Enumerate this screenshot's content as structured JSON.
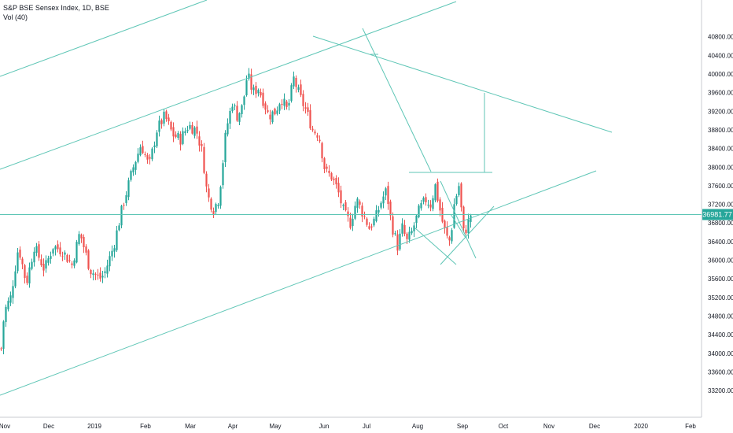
{
  "header": {
    "title": "S&P BSE Sensex Index, 1D, BSE",
    "volume_label": "Vol (40)"
  },
  "colors": {
    "up": "#26a69a",
    "down": "#ef5350",
    "trendline": "#5fc6b6",
    "last_price_bg": "#26a69a",
    "axis_text": "#131722",
    "border": "#c8cbd1"
  },
  "chart_data": {
    "type": "candlestick",
    "symbol": "S&P BSE Sensex Index",
    "interval": "1D",
    "exchange": "BSE",
    "ylim": [
      33000,
      41200
    ],
    "y_ticks": [
      33200,
      33600,
      34000,
      34400,
      34800,
      35200,
      35600,
      36000,
      36400,
      36800,
      37200,
      37600,
      38000,
      38400,
      38800,
      39200,
      39600,
      40000,
      40400,
      40800
    ],
    "x_ticks": [
      "Nov",
      "Dec",
      "2019",
      "Feb",
      "Mar",
      "Apr",
      "May",
      "Jun",
      "Jul",
      "Aug",
      "Sep",
      "Oct",
      "Nov",
      "Dec",
      "2020",
      "Feb"
    ],
    "last_price": "36981.77",
    "last_price_value": 36981.77,
    "anchors": [
      [
        0,
        34100
      ],
      [
        4,
        34900
      ],
      [
        12,
        35200
      ],
      [
        22,
        36300
      ],
      [
        32,
        35500
      ],
      [
        42,
        36300
      ],
      [
        55,
        35800
      ],
      [
        66,
        36300
      ],
      [
        78,
        36200
      ],
      [
        90,
        35900
      ],
      [
        100,
        36600
      ],
      [
        113,
        35800
      ],
      [
        125,
        35600
      ],
      [
        131,
        35700
      ],
      [
        143,
        36300
      ],
      [
        155,
        37200
      ],
      [
        168,
        38000
      ],
      [
        178,
        38500
      ],
      [
        188,
        38000
      ],
      [
        198,
        38800
      ],
      [
        208,
        39100
      ],
      [
        218,
        38700
      ],
      [
        228,
        38600
      ],
      [
        238,
        38900
      ],
      [
        248,
        38800
      ],
      [
        256,
        38300
      ],
      [
        262,
        37400
      ],
      [
        270,
        37100
      ],
      [
        276,
        37300
      ],
      [
        280,
        37800
      ],
      [
        286,
        38800
      ],
      [
        294,
        39400
      ],
      [
        300,
        39100
      ],
      [
        307,
        39300
      ],
      [
        313,
        40000
      ],
      [
        320,
        39600
      ],
      [
        327,
        39700
      ],
      [
        334,
        39400
      ],
      [
        340,
        39100
      ],
      [
        349,
        39200
      ],
      [
        356,
        39500
      ],
      [
        364,
        39200
      ],
      [
        372,
        39900
      ],
      [
        380,
        39500
      ],
      [
        388,
        39200
      ],
      [
        396,
        38800
      ],
      [
        404,
        38700
      ],
      [
        412,
        37900
      ],
      [
        420,
        37800
      ],
      [
        428,
        37500
      ],
      [
        436,
        37000
      ],
      [
        444,
        36800
      ],
      [
        452,
        37300
      ],
      [
        460,
        37000
      ],
      [
        468,
        36700
      ],
      [
        476,
        36900
      ],
      [
        484,
        37300
      ],
      [
        490,
        37500
      ],
      [
        496,
        36800
      ],
      [
        504,
        36300
      ],
      [
        510,
        36700
      ],
      [
        516,
        36400
      ],
      [
        522,
        36600
      ],
      [
        532,
        37100
      ],
      [
        540,
        37300
      ],
      [
        546,
        37200
      ],
      [
        552,
        37600
      ],
      [
        560,
        36900
      ],
      [
        566,
        36500
      ],
      [
        571,
        36400
      ],
      [
        576,
        37200
      ],
      [
        582,
        37600
      ],
      [
        588,
        36600
      ],
      [
        592,
        36700
      ],
      [
        597,
        36982
      ]
    ]
  },
  "drawings": {
    "description": "trendlines, channel and measurement markers drawn over the chart"
  }
}
